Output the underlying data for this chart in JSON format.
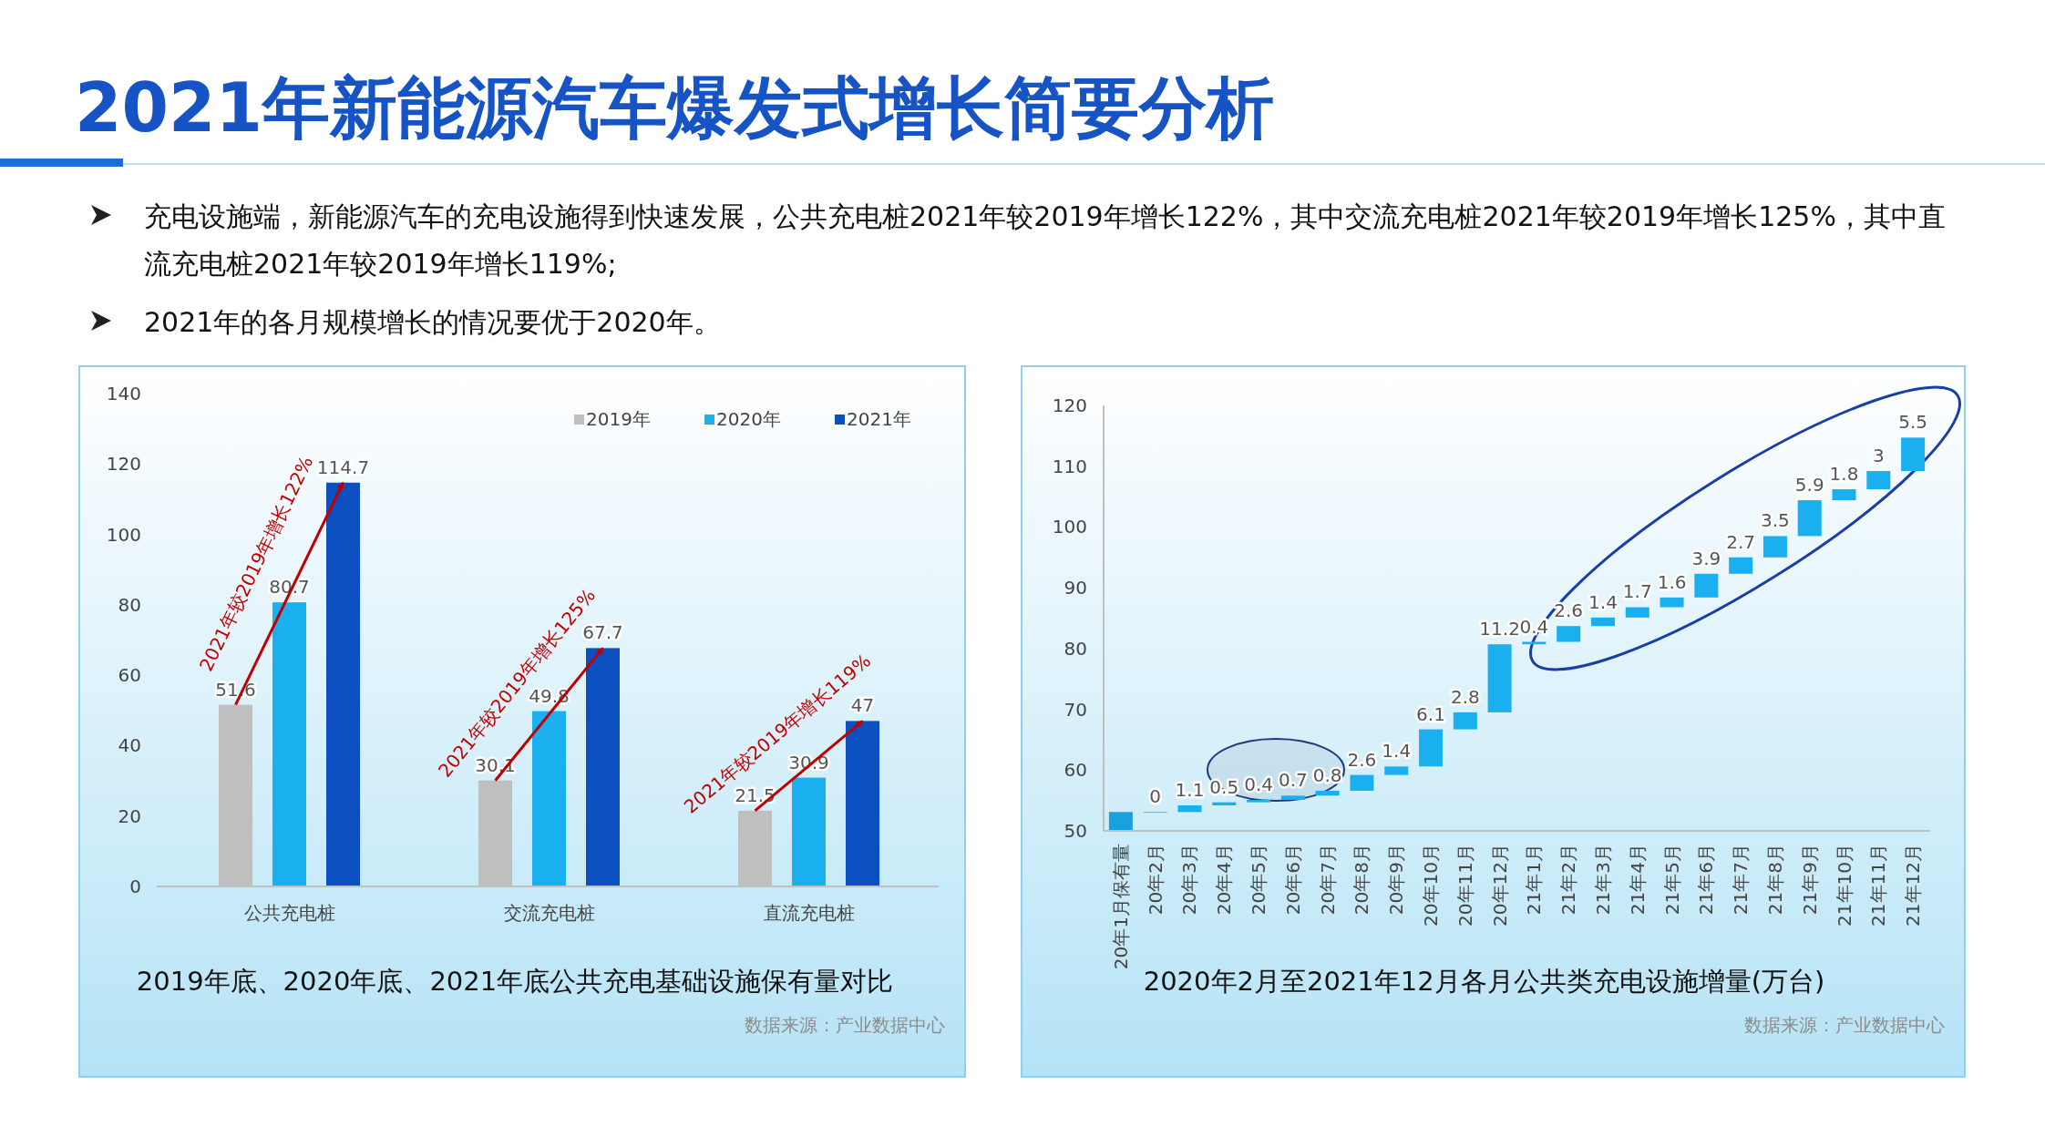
{
  "chart_data": [
    {
      "type": "bar",
      "title": "2019年底、2020年底、2021年底公共充电基础设施保有量对比",
      "categories": [
        "公共充电桩",
        "交流充电桩",
        "直流充电桩"
      ],
      "series": [
        {
          "name": "2019年",
          "color": "#bfbfbf",
          "values": [
            51.6,
            30.1,
            21.5
          ]
        },
        {
          "name": "2020年",
          "color": "#1ab0f0",
          "values": [
            80.7,
            49.8,
            30.9
          ]
        },
        {
          "name": "2021年",
          "color": "#0b4fc1",
          "values": [
            114.7,
            67.7,
            47
          ]
        }
      ],
      "ylim": [
        0,
        140
      ],
      "yticks": [
        0,
        20,
        40,
        60,
        80,
        100,
        120,
        140
      ],
      "legend": "top right",
      "data_labels": true,
      "annotations": [
        "2021年新能源汽车爆发式增长简要分析",
        "充电设施端，新能源汽车的充电设施得到快速发展，公共充电桩2021年较2019年增长122%，其中交流充电桩2021年较2019年增长125%，其中直流充电桩2021年较2019年增长119%;",
        "2021年的各月规模增长的情况要优于2020年。",
        "2021年较2019年增长122%",
        "2021年较2019年增长125%",
        "2021年较2019年增长119%",
        "数据来源：产业数据中心"
      ]
    },
    {
      "type": "bar",
      "title": "2020年2月至2021年12月各月公共类充电设施增量(万台)",
      "categories": [
        "20年1月保有量",
        "20年2月",
        "20年3月",
        "20年4月",
        "20年5月",
        "20年6月",
        "20年7月",
        "20年8月",
        "20年9月",
        "20年10月",
        "20年11月",
        "20年12月",
        "21年1月",
        "21年2月",
        "21年3月",
        "21年4月",
        "21年5月",
        "21年6月",
        "21年7月",
        "21年8月",
        "21年9月",
        "21年10月",
        "21年11月",
        "21年12月"
      ],
      "values": [
        53.1,
        0,
        1.1,
        0.5,
        0.4,
        0.7,
        0.8,
        2.6,
        1.4,
        6.1,
        2.8,
        11.2,
        0.4,
        2.6,
        1.4,
        1.7,
        1.6,
        3.9,
        2.7,
        3.5,
        5.9,
        1.8,
        3,
        5.5
      ],
      "base": [
        null,
        53.1,
        53.1,
        54.2,
        54.7,
        55.1,
        55.8,
        56.6,
        59.2,
        60.6,
        66.7,
        69.5,
        80.7,
        81.1,
        83.7,
        85.1,
        86.8,
        88.4,
        92.3,
        95.0,
        98.5,
        104.4,
        106.2,
        109.2
      ],
      "colors": [
        "#1a9fe0",
        "#1ab0f0",
        "#1ab0f0",
        "#1ab0f0",
        "#1ab0f0",
        "#1ab0f0",
        "#1ab0f0",
        "#1ab0f0",
        "#1ab0f0",
        "#1ab0f0",
        "#1ab0f0",
        "#1ab0f0",
        "#1ab0f0",
        "#1ab0f0",
        "#1ab0f0",
        "#1ab0f0",
        "#1ab0f0",
        "#1ab0f0",
        "#1ab0f0",
        "#1ab0f0",
        "#1ab0f0",
        "#1ab0f0",
        "#1ab0f0",
        "#1ab0f0"
      ],
      "value_labels": [
        null,
        "0",
        "1.1",
        "0.5",
        "0.4",
        "0.7",
        "0.8",
        "2.6",
        "1.4",
        "6.1",
        "2.8",
        "11.2",
        "0.4",
        "2.6",
        "1.4",
        "1.7",
        "1.6",
        "3.9",
        "2.7",
        "3.5",
        "5.9",
        "1.8",
        "3",
        "5.5"
      ],
      "ylim": [
        50,
        120
      ],
      "yticks": [
        50,
        60,
        70,
        80,
        90,
        100,
        110,
        120
      ],
      "annotations": [
        "数据来源：产业数据中心"
      ]
    }
  ]
}
